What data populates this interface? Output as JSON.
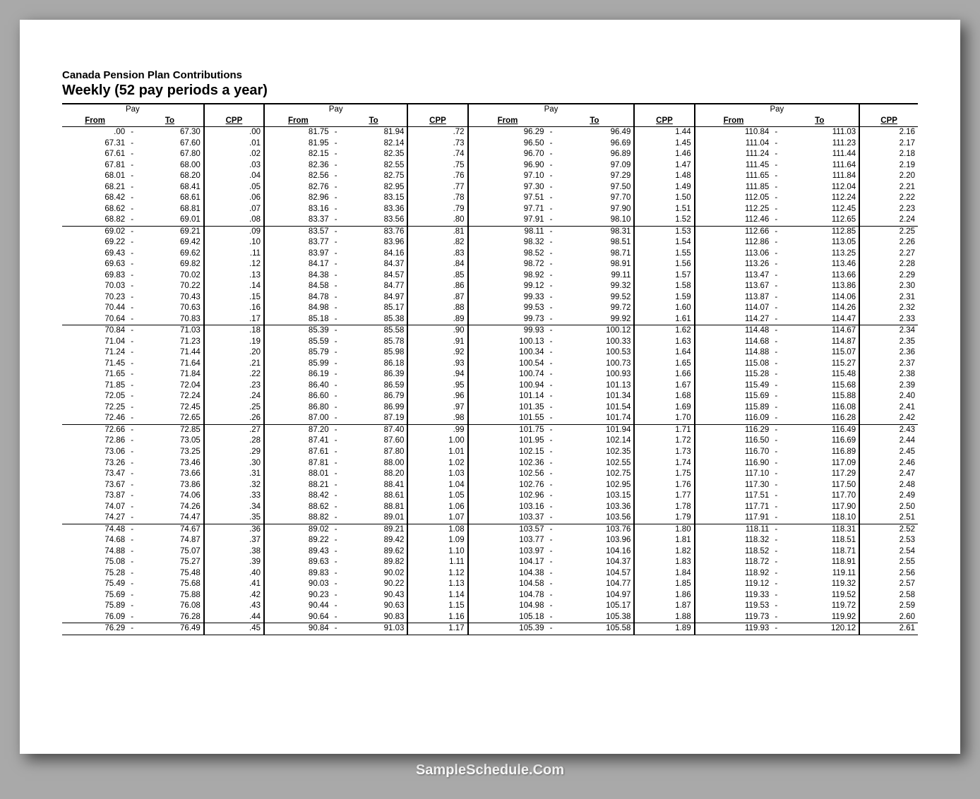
{
  "footer": "SampleSchedule.Com",
  "title_small": "Canada Pension Plan Contributions",
  "title_large": "Weekly (52 pay periods a year)",
  "headers": {
    "pay": "Pay",
    "from": "From",
    "to": "To",
    "cpp": "CPP"
  },
  "table": {
    "type": "table",
    "num_cols": 4,
    "font_size": 11.5,
    "color_text": "#000000",
    "color_bg": "#ffffff",
    "color_border": "#000000",
    "section_breaks": [
      9,
      18,
      27,
      36,
      45
    ],
    "col_widths": [
      "72px",
      "12px",
      "72px",
      "60px"
    ],
    "rows": [
      [
        {
          "f": ".00",
          "t": "67.30",
          "c": ".00"
        },
        {
          "f": "81.75",
          "t": "81.94",
          "c": ".72"
        },
        {
          "f": "96.29",
          "t": "96.49",
          "c": "1.44"
        },
        {
          "f": "110.84",
          "t": "111.03",
          "c": "2.16"
        }
      ],
      [
        {
          "f": "67.31",
          "t": "67.60",
          "c": ".01"
        },
        {
          "f": "81.95",
          "t": "82.14",
          "c": ".73"
        },
        {
          "f": "96.50",
          "t": "96.69",
          "c": "1.45"
        },
        {
          "f": "111.04",
          "t": "111.23",
          "c": "2.17"
        }
      ],
      [
        {
          "f": "67.61",
          "t": "67.80",
          "c": ".02"
        },
        {
          "f": "82.15",
          "t": "82.35",
          "c": ".74"
        },
        {
          "f": "96.70",
          "t": "96.89",
          "c": "1.46"
        },
        {
          "f": "111.24",
          "t": "111.44",
          "c": "2.18"
        }
      ],
      [
        {
          "f": "67.81",
          "t": "68.00",
          "c": ".03"
        },
        {
          "f": "82.36",
          "t": "82.55",
          "c": ".75"
        },
        {
          "f": "96.90",
          "t": "97.09",
          "c": "1.47"
        },
        {
          "f": "111.45",
          "t": "111.64",
          "c": "2.19"
        }
      ],
      [
        {
          "f": "68.01",
          "t": "68.20",
          "c": ".04"
        },
        {
          "f": "82.56",
          "t": "82.75",
          "c": ".76"
        },
        {
          "f": "97.10",
          "t": "97.29",
          "c": "1.48"
        },
        {
          "f": "111.65",
          "t": "111.84",
          "c": "2.20"
        }
      ],
      [
        {
          "f": "68.21",
          "t": "68.41",
          "c": ".05"
        },
        {
          "f": "82.76",
          "t": "82.95",
          "c": ".77"
        },
        {
          "f": "97.30",
          "t": "97.50",
          "c": "1.49"
        },
        {
          "f": "111.85",
          "t": "112.04",
          "c": "2.21"
        }
      ],
      [
        {
          "f": "68.42",
          "t": "68.61",
          "c": ".06"
        },
        {
          "f": "82.96",
          "t": "83.15",
          "c": ".78"
        },
        {
          "f": "97.51",
          "t": "97.70",
          "c": "1.50"
        },
        {
          "f": "112.05",
          "t": "112.24",
          "c": "2.22"
        }
      ],
      [
        {
          "f": "68.62",
          "t": "68.81",
          "c": ".07"
        },
        {
          "f": "83.16",
          "t": "83.36",
          "c": ".79"
        },
        {
          "f": "97.71",
          "t": "97.90",
          "c": "1.51"
        },
        {
          "f": "112.25",
          "t": "112.45",
          "c": "2.23"
        }
      ],
      [
        {
          "f": "68.82",
          "t": "69.01",
          "c": ".08"
        },
        {
          "f": "83.37",
          "t": "83.56",
          "c": ".80"
        },
        {
          "f": "97.91",
          "t": "98.10",
          "c": "1.52"
        },
        {
          "f": "112.46",
          "t": "112.65",
          "c": "2.24"
        }
      ],
      [
        {
          "f": "69.02",
          "t": "69.21",
          "c": ".09"
        },
        {
          "f": "83.57",
          "t": "83.76",
          "c": ".81"
        },
        {
          "f": "98.11",
          "t": "98.31",
          "c": "1.53"
        },
        {
          "f": "112.66",
          "t": "112.85",
          "c": "2.25"
        }
      ],
      [
        {
          "f": "69.22",
          "t": "69.42",
          "c": ".10"
        },
        {
          "f": "83.77",
          "t": "83.96",
          "c": ".82"
        },
        {
          "f": "98.32",
          "t": "98.51",
          "c": "1.54"
        },
        {
          "f": "112.86",
          "t": "113.05",
          "c": "2.26"
        }
      ],
      [
        {
          "f": "69.43",
          "t": "69.62",
          "c": ".11"
        },
        {
          "f": "83.97",
          "t": "84.16",
          "c": ".83"
        },
        {
          "f": "98.52",
          "t": "98.71",
          "c": "1.55"
        },
        {
          "f": "113.06",
          "t": "113.25",
          "c": "2.27"
        }
      ],
      [
        {
          "f": "69.63",
          "t": "69.82",
          "c": ".12"
        },
        {
          "f": "84.17",
          "t": "84.37",
          "c": ".84"
        },
        {
          "f": "98.72",
          "t": "98.91",
          "c": "1.56"
        },
        {
          "f": "113.26",
          "t": "113.46",
          "c": "2.28"
        }
      ],
      [
        {
          "f": "69.83",
          "t": "70.02",
          "c": ".13"
        },
        {
          "f": "84.38",
          "t": "84.57",
          "c": ".85"
        },
        {
          "f": "98.92",
          "t": "99.11",
          "c": "1.57"
        },
        {
          "f": "113.47",
          "t": "113.66",
          "c": "2.29"
        }
      ],
      [
        {
          "f": "70.03",
          "t": "70.22",
          "c": ".14"
        },
        {
          "f": "84.58",
          "t": "84.77",
          "c": ".86"
        },
        {
          "f": "99.12",
          "t": "99.32",
          "c": "1.58"
        },
        {
          "f": "113.67",
          "t": "113.86",
          "c": "2.30"
        }
      ],
      [
        {
          "f": "70.23",
          "t": "70.43",
          "c": ".15"
        },
        {
          "f": "84.78",
          "t": "84.97",
          "c": ".87"
        },
        {
          "f": "99.33",
          "t": "99.52",
          "c": "1.59"
        },
        {
          "f": "113.87",
          "t": "114.06",
          "c": "2.31"
        }
      ],
      [
        {
          "f": "70.44",
          "t": "70.63",
          "c": ".16"
        },
        {
          "f": "84.98",
          "t": "85.17",
          "c": ".88"
        },
        {
          "f": "99.53",
          "t": "99.72",
          "c": "1.60"
        },
        {
          "f": "114.07",
          "t": "114.26",
          "c": "2.32"
        }
      ],
      [
        {
          "f": "70.64",
          "t": "70.83",
          "c": ".17"
        },
        {
          "f": "85.18",
          "t": "85.38",
          "c": ".89"
        },
        {
          "f": "99.73",
          "t": "99.92",
          "c": "1.61"
        },
        {
          "f": "114.27",
          "t": "114.47",
          "c": "2.33"
        }
      ],
      [
        {
          "f": "70.84",
          "t": "71.03",
          "c": ".18"
        },
        {
          "f": "85.39",
          "t": "85.58",
          "c": ".90"
        },
        {
          "f": "99.93",
          "t": "100.12",
          "c": "1.62"
        },
        {
          "f": "114.48",
          "t": "114.67",
          "c": "2.34"
        }
      ],
      [
        {
          "f": "71.04",
          "t": "71.23",
          "c": ".19"
        },
        {
          "f": "85.59",
          "t": "85.78",
          "c": ".91"
        },
        {
          "f": "100.13",
          "t": "100.33",
          "c": "1.63"
        },
        {
          "f": "114.68",
          "t": "114.87",
          "c": "2.35"
        }
      ],
      [
        {
          "f": "71.24",
          "t": "71.44",
          "c": ".20"
        },
        {
          "f": "85.79",
          "t": "85.98",
          "c": ".92"
        },
        {
          "f": "100.34",
          "t": "100.53",
          "c": "1.64"
        },
        {
          "f": "114.88",
          "t": "115.07",
          "c": "2.36"
        }
      ],
      [
        {
          "f": "71.45",
          "t": "71.64",
          "c": ".21"
        },
        {
          "f": "85.99",
          "t": "86.18",
          "c": ".93"
        },
        {
          "f": "100.54",
          "t": "100.73",
          "c": "1.65"
        },
        {
          "f": "115.08",
          "t": "115.27",
          "c": "2.37"
        }
      ],
      [
        {
          "f": "71.65",
          "t": "71.84",
          "c": ".22"
        },
        {
          "f": "86.19",
          "t": "86.39",
          "c": ".94"
        },
        {
          "f": "100.74",
          "t": "100.93",
          "c": "1.66"
        },
        {
          "f": "115.28",
          "t": "115.48",
          "c": "2.38"
        }
      ],
      [
        {
          "f": "71.85",
          "t": "72.04",
          "c": ".23"
        },
        {
          "f": "86.40",
          "t": "86.59",
          "c": ".95"
        },
        {
          "f": "100.94",
          "t": "101.13",
          "c": "1.67"
        },
        {
          "f": "115.49",
          "t": "115.68",
          "c": "2.39"
        }
      ],
      [
        {
          "f": "72.05",
          "t": "72.24",
          "c": ".24"
        },
        {
          "f": "86.60",
          "t": "86.79",
          "c": ".96"
        },
        {
          "f": "101.14",
          "t": "101.34",
          "c": "1.68"
        },
        {
          "f": "115.69",
          "t": "115.88",
          "c": "2.40"
        }
      ],
      [
        {
          "f": "72.25",
          "t": "72.45",
          "c": ".25"
        },
        {
          "f": "86.80",
          "t": "86.99",
          "c": ".97"
        },
        {
          "f": "101.35",
          "t": "101.54",
          "c": "1.69"
        },
        {
          "f": "115.89",
          "t": "116.08",
          "c": "2.41"
        }
      ],
      [
        {
          "f": "72.46",
          "t": "72.65",
          "c": ".26"
        },
        {
          "f": "87.00",
          "t": "87.19",
          "c": ".98"
        },
        {
          "f": "101.55",
          "t": "101.74",
          "c": "1.70"
        },
        {
          "f": "116.09",
          "t": "116.28",
          "c": "2.42"
        }
      ],
      [
        {
          "f": "72.66",
          "t": "72.85",
          "c": ".27"
        },
        {
          "f": "87.20",
          "t": "87.40",
          "c": ".99"
        },
        {
          "f": "101.75",
          "t": "101.94",
          "c": "1.71"
        },
        {
          "f": "116.29",
          "t": "116.49",
          "c": "2.43"
        }
      ],
      [
        {
          "f": "72.86",
          "t": "73.05",
          "c": ".28"
        },
        {
          "f": "87.41",
          "t": "87.60",
          "c": "1.00"
        },
        {
          "f": "101.95",
          "t": "102.14",
          "c": "1.72"
        },
        {
          "f": "116.50",
          "t": "116.69",
          "c": "2.44"
        }
      ],
      [
        {
          "f": "73.06",
          "t": "73.25",
          "c": ".29"
        },
        {
          "f": "87.61",
          "t": "87.80",
          "c": "1.01"
        },
        {
          "f": "102.15",
          "t": "102.35",
          "c": "1.73"
        },
        {
          "f": "116.70",
          "t": "116.89",
          "c": "2.45"
        }
      ],
      [
        {
          "f": "73.26",
          "t": "73.46",
          "c": ".30"
        },
        {
          "f": "87.81",
          "t": "88.00",
          "c": "1.02"
        },
        {
          "f": "102.36",
          "t": "102.55",
          "c": "1.74"
        },
        {
          "f": "116.90",
          "t": "117.09",
          "c": "2.46"
        }
      ],
      [
        {
          "f": "73.47",
          "t": "73.66",
          "c": ".31"
        },
        {
          "f": "88.01",
          "t": "88.20",
          "c": "1.03"
        },
        {
          "f": "102.56",
          "t": "102.75",
          "c": "1.75"
        },
        {
          "f": "117.10",
          "t": "117.29",
          "c": "2.47"
        }
      ],
      [
        {
          "f": "73.67",
          "t": "73.86",
          "c": ".32"
        },
        {
          "f": "88.21",
          "t": "88.41",
          "c": "1.04"
        },
        {
          "f": "102.76",
          "t": "102.95",
          "c": "1.76"
        },
        {
          "f": "117.30",
          "t": "117.50",
          "c": "2.48"
        }
      ],
      [
        {
          "f": "73.87",
          "t": "74.06",
          "c": ".33"
        },
        {
          "f": "88.42",
          "t": "88.61",
          "c": "1.05"
        },
        {
          "f": "102.96",
          "t": "103.15",
          "c": "1.77"
        },
        {
          "f": "117.51",
          "t": "117.70",
          "c": "2.49"
        }
      ],
      [
        {
          "f": "74.07",
          "t": "74.26",
          "c": ".34"
        },
        {
          "f": "88.62",
          "t": "88.81",
          "c": "1.06"
        },
        {
          "f": "103.16",
          "t": "103.36",
          "c": "1.78"
        },
        {
          "f": "117.71",
          "t": "117.90",
          "c": "2.50"
        }
      ],
      [
        {
          "f": "74.27",
          "t": "74.47",
          "c": ".35"
        },
        {
          "f": "88.82",
          "t": "89.01",
          "c": "1.07"
        },
        {
          "f": "103.37",
          "t": "103.56",
          "c": "1.79"
        },
        {
          "f": "117.91",
          "t": "118.10",
          "c": "2.51"
        }
      ],
      [
        {
          "f": "74.48",
          "t": "74.67",
          "c": ".36"
        },
        {
          "f": "89.02",
          "t": "89.21",
          "c": "1.08"
        },
        {
          "f": "103.57",
          "t": "103.76",
          "c": "1.80"
        },
        {
          "f": "118.11",
          "t": "118.31",
          "c": "2.52"
        }
      ],
      [
        {
          "f": "74.68",
          "t": "74.87",
          "c": ".37"
        },
        {
          "f": "89.22",
          "t": "89.42",
          "c": "1.09"
        },
        {
          "f": "103.77",
          "t": "103.96",
          "c": "1.81"
        },
        {
          "f": "118.32",
          "t": "118.51",
          "c": "2.53"
        }
      ],
      [
        {
          "f": "74.88",
          "t": "75.07",
          "c": ".38"
        },
        {
          "f": "89.43",
          "t": "89.62",
          "c": "1.10"
        },
        {
          "f": "103.97",
          "t": "104.16",
          "c": "1.82"
        },
        {
          "f": "118.52",
          "t": "118.71",
          "c": "2.54"
        }
      ],
      [
        {
          "f": "75.08",
          "t": "75.27",
          "c": ".39"
        },
        {
          "f": "89.63",
          "t": "89.82",
          "c": "1.11"
        },
        {
          "f": "104.17",
          "t": "104.37",
          "c": "1.83"
        },
        {
          "f": "118.72",
          "t": "118.91",
          "c": "2.55"
        }
      ],
      [
        {
          "f": "75.28",
          "t": "75.48",
          "c": ".40"
        },
        {
          "f": "89.83",
          "t": "90.02",
          "c": "1.12"
        },
        {
          "f": "104.38",
          "t": "104.57",
          "c": "1.84"
        },
        {
          "f": "118.92",
          "t": "119.11",
          "c": "2.56"
        }
      ],
      [
        {
          "f": "75.49",
          "t": "75.68",
          "c": ".41"
        },
        {
          "f": "90.03",
          "t": "90.22",
          "c": "1.13"
        },
        {
          "f": "104.58",
          "t": "104.77",
          "c": "1.85"
        },
        {
          "f": "119.12",
          "t": "119.32",
          "c": "2.57"
        }
      ],
      [
        {
          "f": "75.69",
          "t": "75.88",
          "c": ".42"
        },
        {
          "f": "90.23",
          "t": "90.43",
          "c": "1.14"
        },
        {
          "f": "104.78",
          "t": "104.97",
          "c": "1.86"
        },
        {
          "f": "119.33",
          "t": "119.52",
          "c": "2.58"
        }
      ],
      [
        {
          "f": "75.89",
          "t": "76.08",
          "c": ".43"
        },
        {
          "f": "90.44",
          "t": "90.63",
          "c": "1.15"
        },
        {
          "f": "104.98",
          "t": "105.17",
          "c": "1.87"
        },
        {
          "f": "119.53",
          "t": "119.72",
          "c": "2.59"
        }
      ],
      [
        {
          "f": "76.09",
          "t": "76.28",
          "c": ".44"
        },
        {
          "f": "90.64",
          "t": "90.83",
          "c": "1.16"
        },
        {
          "f": "105.18",
          "t": "105.38",
          "c": "1.88"
        },
        {
          "f": "119.73",
          "t": "119.92",
          "c": "2.60"
        }
      ],
      [
        {
          "f": "76.29",
          "t": "76.49",
          "c": ".45"
        },
        {
          "f": "90.84",
          "t": "91.03",
          "c": "1.17"
        },
        {
          "f": "105.39",
          "t": "105.58",
          "c": "1.89"
        },
        {
          "f": "119.93",
          "t": "120.12",
          "c": "2.61"
        }
      ]
    ]
  }
}
